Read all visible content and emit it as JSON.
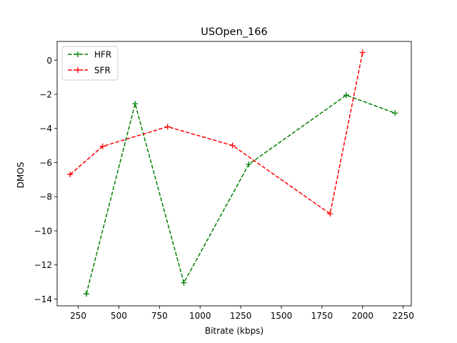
{
  "chart_data": {
    "type": "line",
    "title": "USOpen_166",
    "xlabel": "Bitrate (kbps)",
    "ylabel": "DMOS",
    "xlim": [
      120,
      2300
    ],
    "ylim": [
      -14.4,
      1.1
    ],
    "xticks": [
      250,
      500,
      750,
      1000,
      1250,
      1500,
      1750,
      2000,
      2250
    ],
    "xtick_labels": [
      "250",
      "500",
      "750",
      "1000",
      "1250",
      "1500",
      "1750",
      "2000",
      "2250"
    ],
    "yticks": [
      0,
      -2,
      -4,
      -6,
      -8,
      -10,
      -12,
      -14
    ],
    "ytick_labels": [
      "0",
      "−2",
      "−4",
      "−6",
      "−8",
      "−10",
      "−12",
      "−14"
    ],
    "grid": false,
    "legend_position": "top-left",
    "series": [
      {
        "name": "HFR",
        "color": "#008000",
        "line_style": "dashed",
        "marker": "plus",
        "x": [
          300,
          600,
          900,
          1300,
          1900,
          2200
        ],
        "y": [
          -13.7,
          -2.55,
          -13.05,
          -6.1,
          -2.05,
          -3.1
        ]
      },
      {
        "name": "SFR",
        "color": "#ff0000",
        "line_style": "dashed",
        "marker": "plus",
        "x": [
          200,
          400,
          800,
          1200,
          1800,
          2000
        ],
        "y": [
          -6.7,
          -5.05,
          -3.9,
          -5.0,
          -9.0,
          0.45
        ]
      }
    ]
  }
}
